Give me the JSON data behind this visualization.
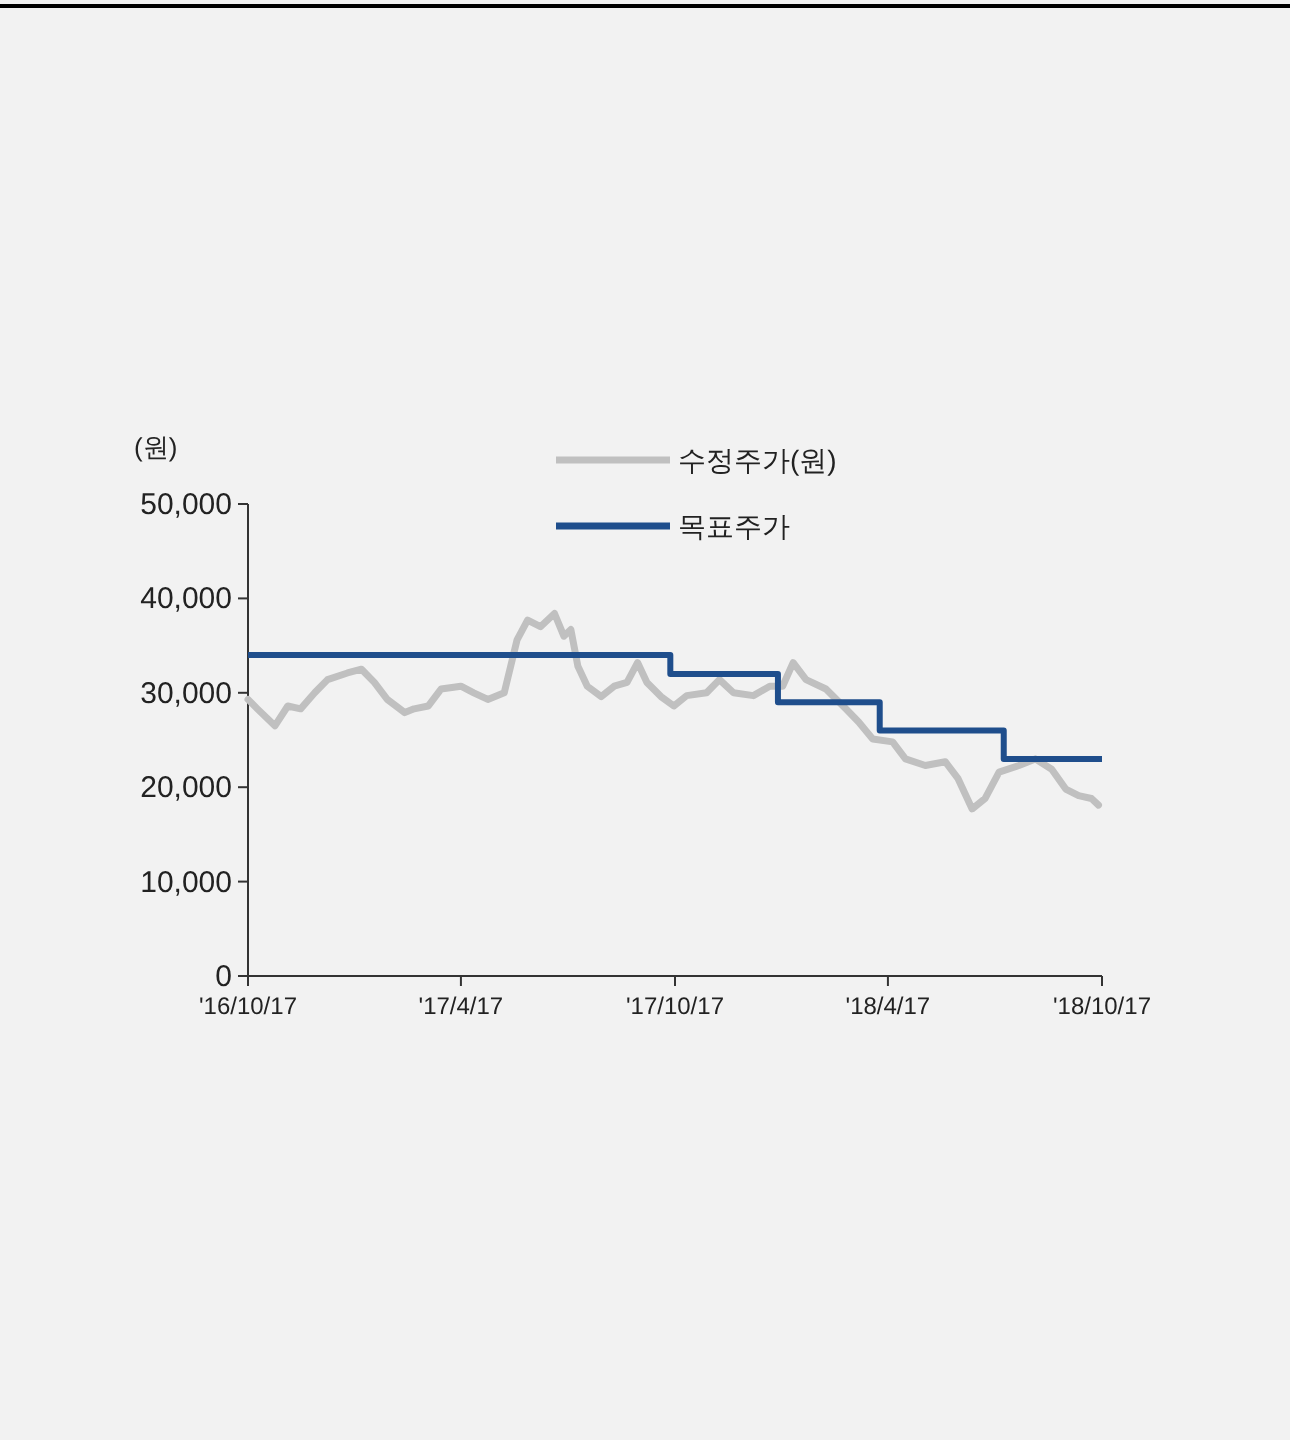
{
  "chart_data": {
    "type": "line",
    "ylabel": "(원)",
    "xlim": [
      "2016-10-17",
      "2018-10-17"
    ],
    "ylim": [
      0,
      50000
    ],
    "xticks": [
      {
        "value": "2016-10-17",
        "label": "'16/10/17"
      },
      {
        "value": "2017-04-17",
        "label": "'17/4/17"
      },
      {
        "value": "2017-10-17",
        "label": "'17/10/17"
      },
      {
        "value": "2018-04-17",
        "label": "'18/4/17"
      },
      {
        "value": "2018-10-17",
        "label": "'18/10/17"
      }
    ],
    "yticks": [
      {
        "value": 0,
        "label": "0"
      },
      {
        "value": 10000,
        "label": "10,000"
      },
      {
        "value": 20000,
        "label": "20,000"
      },
      {
        "value": 30000,
        "label": "30,000"
      },
      {
        "value": 40000,
        "label": "40,000"
      },
      {
        "value": 50000,
        "label": "50,000"
      }
    ],
    "grid": false,
    "legend": "top",
    "marker": "none",
    "line_style": "solid",
    "series": [
      {
        "name": "수정주가(원)",
        "color": "#c0c0c0",
        "x": [
          "2016-10-17",
          "2016-10-25",
          "2016-11-09",
          "2016-11-20",
          "2016-12-01",
          "2016-12-13",
          "2016-12-24",
          "2017-01-10",
          "2017-01-22",
          "2017-02-02",
          "2017-02-13",
          "2017-02-28",
          "2017-03-08",
          "2017-03-20",
          "2017-03-31",
          "2017-04-17",
          "2017-04-28",
          "2017-05-10",
          "2017-05-24",
          "2017-06-04",
          "2017-06-13",
          "2017-06-24",
          "2017-07-06",
          "2017-07-14",
          "2017-07-20",
          "2017-07-26",
          "2017-08-03",
          "2017-08-15",
          "2017-08-26",
          "2017-09-06",
          "2017-09-15",
          "2017-09-23",
          "2017-10-05",
          "2017-10-16",
          "2017-10-27",
          "2017-11-13",
          "2017-11-24",
          "2017-12-06",
          "2017-12-23",
          "2018-01-06",
          "2018-01-17",
          "2018-01-26",
          "2018-02-06",
          "2018-02-23",
          "2018-03-12",
          "2018-03-23",
          "2018-04-04",
          "2018-04-21",
          "2018-05-02",
          "2018-05-19",
          "2018-06-05",
          "2018-06-16",
          "2018-06-28",
          "2018-07-09",
          "2018-07-21",
          "2018-08-07",
          "2018-08-21",
          "2018-09-04",
          "2018-09-16",
          "2018-09-27",
          "2018-10-08",
          "2018-10-14"
        ],
        "values": [
          29300,
          28300,
          26500,
          28600,
          28300,
          30000,
          31400,
          32100,
          32500,
          31100,
          29300,
          27900,
          28300,
          28600,
          30400,
          30700,
          30000,
          29300,
          30000,
          35600,
          37700,
          37000,
          38400,
          36000,
          36700,
          32800,
          30700,
          29600,
          30700,
          31100,
          33200,
          31100,
          29600,
          28600,
          29700,
          30000,
          31400,
          30000,
          29700,
          30700,
          30700,
          33200,
          31400,
          30400,
          28300,
          26900,
          25100,
          24800,
          23000,
          22300,
          22700,
          20900,
          17700,
          18800,
          21600,
          22300,
          23000,
          21900,
          19800,
          19100,
          18800,
          18100
        ]
      },
      {
        "name": "목표주가",
        "color": "#1f4e8c",
        "type": "step",
        "x": [
          "2016-10-17",
          "2017-10-13",
          "2018-01-13",
          "2018-04-10",
          "2018-07-25",
          "2018-10-17"
        ],
        "values": [
          34000,
          32000,
          29000,
          26000,
          23000,
          23000
        ]
      }
    ]
  }
}
